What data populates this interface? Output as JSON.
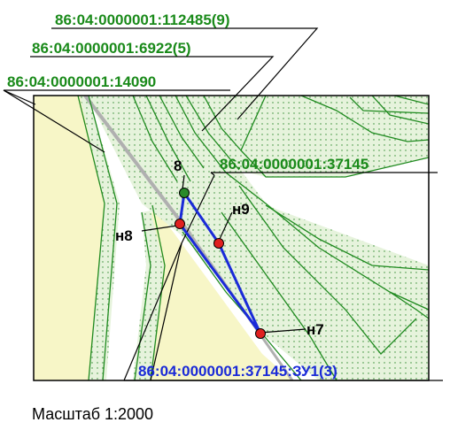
{
  "map": {
    "parcels": [
      {
        "id": "p1",
        "cadastral_number": "86:04:0000001:112485(9)",
        "color": "#1a8a1a"
      },
      {
        "id": "p2",
        "cadastral_number": "86:04:0000001:6922(5)",
        "color": "#1a8a1a"
      },
      {
        "id": "p3",
        "cadastral_number": "86:04:0000001:14090",
        "color": "#1a8a1a"
      },
      {
        "id": "p4",
        "cadastral_number": "86:04:0000001:37145",
        "color": "#1a8a1a"
      },
      {
        "id": "p5",
        "cadastral_number": "86:04:0000001:37145:ЗУ1(3)",
        "color": "#1a2ad8"
      }
    ],
    "points": [
      {
        "id": "8",
        "label": "8",
        "color": "#2a8a2a"
      },
      {
        "id": "n8",
        "label": "н8",
        "color": "#e02020"
      },
      {
        "id": "n9",
        "label": "н9",
        "color": "#e02020"
      },
      {
        "id": "n7",
        "label": "н7",
        "color": "#e02020"
      }
    ],
    "colors": {
      "background_zone": "#f7f6c7",
      "hatched_zone": "#dff0d0",
      "boundary_lines": "#1f8a1f",
      "new_boundary": "#1a2ad8",
      "road": "#b0b0b0"
    }
  },
  "scale_text": "Масштаб 1:2000"
}
